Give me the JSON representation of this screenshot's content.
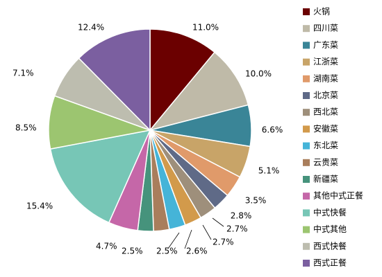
{
  "chart_data": {
    "type": "pie",
    "title": "",
    "start_angle_deg": 0,
    "direction": "clockwise",
    "legend_position": "right",
    "slices": [
      {
        "name": "火锅",
        "value": 11.0,
        "label": "11.0%",
        "color": "#6B0000"
      },
      {
        "name": "四川菜",
        "value": 10.0,
        "label": "10.0%",
        "color": "#BFBAA8"
      },
      {
        "name": "广东菜",
        "value": 6.6,
        "label": "6.6%",
        "color": "#3A8597"
      },
      {
        "name": "江浙菜",
        "value": 5.1,
        "label": "5.1%",
        "color": "#C8A468"
      },
      {
        "name": "湖南菜",
        "value": 3.5,
        "label": "3.5%",
        "color": "#E09A6A"
      },
      {
        "name": "北京菜",
        "value": 2.8,
        "label": "2.8%",
        "color": "#5F6A87"
      },
      {
        "name": "西北菜",
        "value": 2.7,
        "label": "2.7%",
        "color": "#9E8F7B"
      },
      {
        "name": "安徽菜",
        "value": 2.7,
        "label": "2.7%",
        "color": "#D29A4B"
      },
      {
        "name": "东北菜",
        "value": 2.6,
        "label": "2.6%",
        "color": "#45B4D8"
      },
      {
        "name": "云贵菜",
        "value": 2.5,
        "label": "2.5%",
        "color": "#A97E5C"
      },
      {
        "name": "新疆菜",
        "value": 2.5,
        "label": "2.5%",
        "color": "#46937C"
      },
      {
        "name": "其他中式正餐",
        "value": 4.7,
        "label": "4.7%",
        "color": "#C567A8"
      },
      {
        "name": "中式快餐",
        "value": 15.4,
        "label": "15.4%",
        "color": "#77C6B6"
      },
      {
        "name": "中式其他",
        "value": 8.5,
        "label": "8.5%",
        "color": "#9CC570"
      },
      {
        "name": "西式快餐",
        "value": 7.1,
        "label": "7.1%",
        "color": "#BDBDAF"
      },
      {
        "name": "西式正餐",
        "value": 12.4,
        "label": "12.4%",
        "color": "#7B5FA0"
      }
    ]
  }
}
